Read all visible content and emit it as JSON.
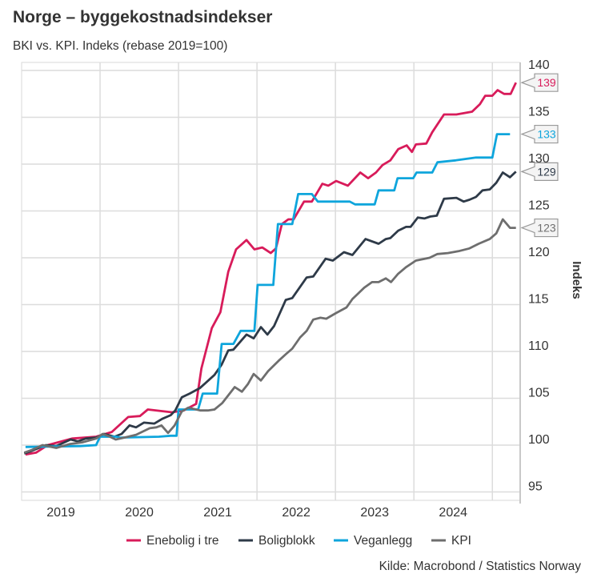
{
  "chart_data": {
    "type": "line",
    "title": "Norge – byggekostnadsindekser",
    "subtitle": "BKI vs. KPI. Indeks (rebase 2019=100)",
    "ylabel": "Indeks",
    "xlabel": "",
    "x_unit": "months since Jan 2019",
    "xlim": [
      0,
      78
    ],
    "ylim": [
      94,
      141
    ],
    "y_ticks": [
      95,
      100,
      105,
      110,
      115,
      120,
      125,
      130,
      135,
      140
    ],
    "x_ticks": [
      {
        "label": "2019",
        "month": 6
      },
      {
        "label": "2020",
        "month": 18
      },
      {
        "label": "2021",
        "month": 30
      },
      {
        "label": "2022",
        "month": 42
      },
      {
        "label": "2023",
        "month": 54
      },
      {
        "label": "2024",
        "month": 66
      }
    ],
    "x_gridlines": [
      12,
      24,
      36,
      48,
      60,
      72
    ],
    "grid": true,
    "y_axis_side": "right",
    "legend_position": "bottom",
    "source": "Kilde: Macrobond / Statistics Norway",
    "series": [
      {
        "name": "Enebolig i tre",
        "color": "#d81b5a",
        "end_label": "139",
        "points": [
          [
            0.6,
            99.0
          ],
          [
            2.2,
            99.2
          ],
          [
            4.0,
            100.0
          ],
          [
            7.7,
            100.7
          ],
          [
            11.4,
            100.9
          ],
          [
            13.8,
            101.4
          ],
          [
            16.3,
            103.0
          ],
          [
            18.1,
            103.1
          ],
          [
            19.3,
            103.8
          ],
          [
            23.0,
            103.5
          ],
          [
            24.8,
            103.7
          ],
          [
            26.7,
            104.4
          ],
          [
            27.5,
            108.2
          ],
          [
            29.1,
            112.5
          ],
          [
            30.4,
            114.2
          ],
          [
            31.6,
            118.5
          ],
          [
            32.8,
            120.9
          ],
          [
            34.4,
            121.9
          ],
          [
            35.6,
            120.9
          ],
          [
            36.8,
            121.1
          ],
          [
            38.1,
            120.5
          ],
          [
            38.9,
            121.0
          ],
          [
            39.8,
            123.6
          ],
          [
            40.8,
            124.1
          ],
          [
            41.6,
            124.1
          ],
          [
            43.2,
            126.0
          ],
          [
            44.4,
            126.0
          ],
          [
            46.0,
            127.9
          ],
          [
            46.9,
            127.7
          ],
          [
            48.1,
            128.2
          ],
          [
            49.9,
            127.7
          ],
          [
            51.8,
            129.1
          ],
          [
            53.0,
            128.5
          ],
          [
            54.2,
            129.1
          ],
          [
            55.2,
            129.9
          ],
          [
            56.4,
            130.4
          ],
          [
            57.6,
            131.6
          ],
          [
            58.9,
            132.0
          ],
          [
            59.7,
            131.3
          ],
          [
            60.3,
            132.1
          ],
          [
            61.9,
            132.2
          ],
          [
            62.8,
            133.4
          ],
          [
            64.6,
            135.3
          ],
          [
            66.5,
            135.3
          ],
          [
            68.9,
            135.6
          ],
          [
            70.1,
            136.4
          ],
          [
            70.9,
            137.3
          ],
          [
            72.0,
            137.3
          ],
          [
            72.8,
            137.9
          ],
          [
            73.8,
            137.5
          ],
          [
            74.8,
            137.5
          ],
          [
            75.6,
            138.7
          ]
        ]
      },
      {
        "name": "Boligblokk",
        "color": "#2e3a48",
        "end_label": "129",
        "points": [
          [
            0.4,
            99.1
          ],
          [
            1.6,
            99.4
          ],
          [
            3.7,
            100.0
          ],
          [
            5.3,
            99.9
          ],
          [
            7.5,
            100.6
          ],
          [
            8.6,
            100.4
          ],
          [
            9.8,
            100.7
          ],
          [
            11.4,
            100.8
          ],
          [
            12.6,
            101.2
          ],
          [
            14.2,
            100.9
          ],
          [
            15.3,
            101.2
          ],
          [
            16.5,
            102.1
          ],
          [
            17.5,
            101.9
          ],
          [
            18.7,
            102.4
          ],
          [
            20.3,
            102.3
          ],
          [
            21.5,
            102.8
          ],
          [
            22.8,
            103.2
          ],
          [
            23.5,
            103.7
          ],
          [
            24.5,
            105.1
          ],
          [
            25.7,
            105.5
          ],
          [
            27.3,
            106.1
          ],
          [
            29.5,
            107.5
          ],
          [
            30.6,
            108.6
          ],
          [
            31.6,
            110.1
          ],
          [
            32.4,
            110.2
          ],
          [
            34.4,
            111.8
          ],
          [
            35.5,
            111.4
          ],
          [
            36.6,
            112.6
          ],
          [
            37.6,
            111.8
          ],
          [
            38.6,
            112.7
          ],
          [
            40.4,
            115.5
          ],
          [
            41.4,
            115.7
          ],
          [
            42.6,
            116.9
          ],
          [
            43.6,
            117.9
          ],
          [
            44.6,
            118.0
          ],
          [
            46.5,
            119.9
          ],
          [
            47.6,
            119.7
          ],
          [
            49.3,
            120.6
          ],
          [
            50.6,
            120.3
          ],
          [
            52.6,
            122.0
          ],
          [
            54.6,
            121.5
          ],
          [
            55.7,
            122.0
          ],
          [
            56.4,
            122.1
          ],
          [
            57.6,
            122.9
          ],
          [
            58.8,
            123.3
          ],
          [
            59.5,
            123.3
          ],
          [
            60.6,
            124.3
          ],
          [
            61.6,
            124.2
          ],
          [
            62.5,
            124.4
          ],
          [
            63.5,
            124.5
          ],
          [
            64.6,
            126.3
          ],
          [
            66.5,
            126.4
          ],
          [
            67.6,
            126.0
          ],
          [
            68.5,
            126.2
          ],
          [
            69.5,
            126.5
          ],
          [
            70.5,
            127.2
          ],
          [
            71.6,
            127.3
          ],
          [
            72.6,
            128.0
          ],
          [
            73.6,
            129.1
          ],
          [
            74.7,
            128.6
          ],
          [
            75.6,
            129.2
          ]
        ]
      },
      {
        "name": "Veganlegg",
        "color": "#0ea5dc",
        "end_label": "133",
        "points": [
          [
            0.6,
            99.8
          ],
          [
            9.0,
            99.9
          ],
          [
            11.4,
            100.0
          ],
          [
            12.0,
            100.9
          ],
          [
            14.5,
            100.9
          ],
          [
            15.0,
            100.8
          ],
          [
            21.0,
            100.9
          ],
          [
            22.8,
            101.0
          ],
          [
            23.7,
            101.0
          ],
          [
            24.0,
            103.8
          ],
          [
            27.0,
            103.8
          ],
          [
            27.7,
            105.5
          ],
          [
            29.9,
            105.5
          ],
          [
            30.6,
            110.8
          ],
          [
            32.4,
            110.8
          ],
          [
            33.5,
            112.2
          ],
          [
            35.6,
            112.2
          ],
          [
            36.1,
            117.1
          ],
          [
            38.5,
            117.1
          ],
          [
            39.2,
            123.6
          ],
          [
            41.4,
            123.6
          ],
          [
            42.3,
            126.8
          ],
          [
            44.4,
            126.8
          ],
          [
            45.3,
            126.0
          ],
          [
            50.2,
            126.0
          ],
          [
            51.0,
            125.7
          ],
          [
            54.0,
            125.7
          ],
          [
            54.6,
            127.2
          ],
          [
            57.0,
            127.2
          ],
          [
            57.5,
            128.5
          ],
          [
            59.9,
            128.5
          ],
          [
            60.4,
            129.1
          ],
          [
            62.8,
            129.1
          ],
          [
            63.6,
            130.2
          ],
          [
            66.4,
            130.4
          ],
          [
            69.5,
            130.7
          ],
          [
            72.0,
            130.7
          ],
          [
            72.7,
            133.2
          ],
          [
            74.7,
            133.2
          ]
        ]
      },
      {
        "name": "KPI",
        "color": "#6e6e6e",
        "end_label": "123",
        "points": [
          [
            0.4,
            99.2
          ],
          [
            1.6,
            99.5
          ],
          [
            3.2,
            100.0
          ],
          [
            5.3,
            99.7
          ],
          [
            7.3,
            100.1
          ],
          [
            9.3,
            100.3
          ],
          [
            11.4,
            100.7
          ],
          [
            12.4,
            101.2
          ],
          [
            13.5,
            100.9
          ],
          [
            14.4,
            100.6
          ],
          [
            16.3,
            100.9
          ],
          [
            17.5,
            101.1
          ],
          [
            19.6,
            101.8
          ],
          [
            20.6,
            101.9
          ],
          [
            21.4,
            102.1
          ],
          [
            22.4,
            101.3
          ],
          [
            23.4,
            102.1
          ],
          [
            24.5,
            103.6
          ],
          [
            25.5,
            104.0
          ],
          [
            27.3,
            103.7
          ],
          [
            28.5,
            103.7
          ],
          [
            29.5,
            103.8
          ],
          [
            30.7,
            104.5
          ],
          [
            32.6,
            106.2
          ],
          [
            33.7,
            105.7
          ],
          [
            34.6,
            106.5
          ],
          [
            35.5,
            107.6
          ],
          [
            36.6,
            106.9
          ],
          [
            37.7,
            107.9
          ],
          [
            39.3,
            109.0
          ],
          [
            40.4,
            109.7
          ],
          [
            41.4,
            110.3
          ],
          [
            42.6,
            111.5
          ],
          [
            43.6,
            112.2
          ],
          [
            44.6,
            113.4
          ],
          [
            45.7,
            113.6
          ],
          [
            46.6,
            113.5
          ],
          [
            48.1,
            114.1
          ],
          [
            49.7,
            114.7
          ],
          [
            50.6,
            115.6
          ],
          [
            52.4,
            116.8
          ],
          [
            53.6,
            117.4
          ],
          [
            54.6,
            117.4
          ],
          [
            55.7,
            117.8
          ],
          [
            56.5,
            117.4
          ],
          [
            57.6,
            118.3
          ],
          [
            58.8,
            119.0
          ],
          [
            60.3,
            119.7
          ],
          [
            62.4,
            120.0
          ],
          [
            63.6,
            120.4
          ],
          [
            65.2,
            120.5
          ],
          [
            66.8,
            120.7
          ],
          [
            68.5,
            121.0
          ],
          [
            69.9,
            121.5
          ],
          [
            71.6,
            122.0
          ],
          [
            72.6,
            122.6
          ],
          [
            73.6,
            124.1
          ],
          [
            74.7,
            123.2
          ],
          [
            75.6,
            123.2
          ]
        ]
      }
    ]
  }
}
